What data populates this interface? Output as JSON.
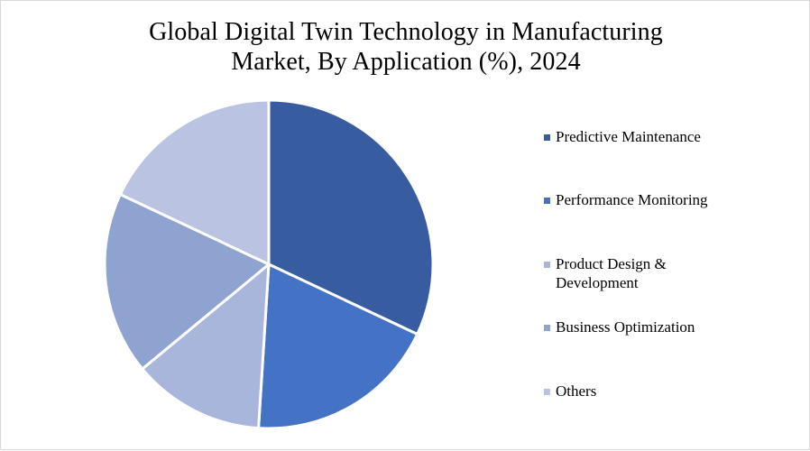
{
  "chart_data": {
    "type": "pie",
    "title_lines": [
      "Global Digital Twin Technology in Manufacturing",
      "Market, By Application (%), 2024"
    ],
    "categories": [
      "Predictive Maintenance",
      "Performance Monitoring",
      "Product Design & Development",
      "Business Optimization",
      "Others"
    ],
    "values": [
      32,
      19,
      13,
      18,
      18
    ],
    "colors": [
      "#375c9f",
      "#4472c4",
      "#a9b6db",
      "#8fa3d1",
      "#bac4e2"
    ],
    "legend_position": "right",
    "data_labels_shown": false
  }
}
